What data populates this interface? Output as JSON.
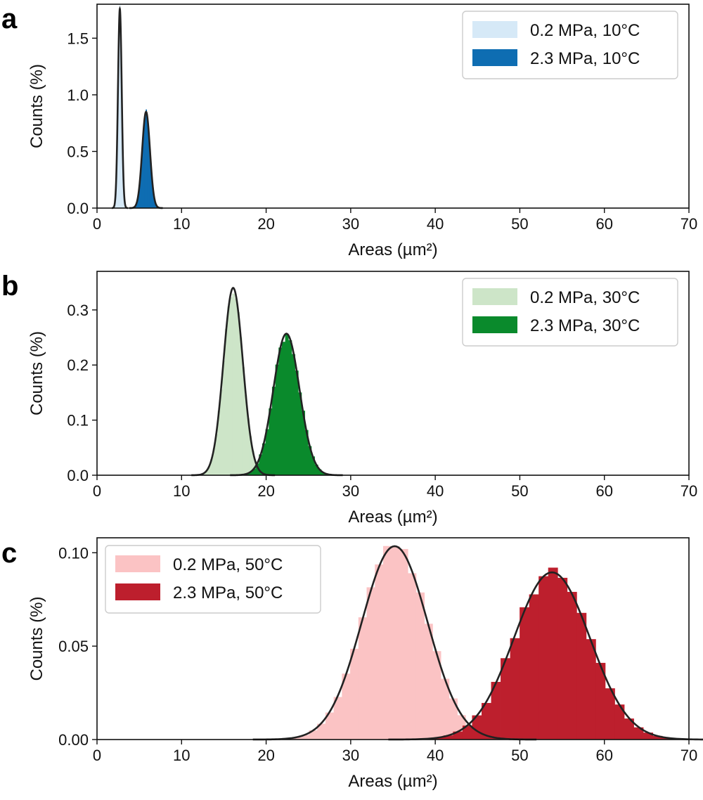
{
  "chart_data": [
    {
      "panel": "a",
      "type": "histogram",
      "xlabel": "Areas (µm²)",
      "ylabel": "Counts (%)",
      "xlim": [
        0,
        70
      ],
      "ylim": [
        0,
        1.8
      ],
      "xticks": [
        "0",
        "10",
        "20",
        "30",
        "40",
        "50",
        "60",
        "70"
      ],
      "yticks": [
        {
          "v": 0.0,
          "label": "0.0"
        },
        {
          "v": 0.5,
          "label": "0.5"
        },
        {
          "v": 1.0,
          "label": "1.0"
        },
        {
          "v": 1.5,
          "label": "1.5"
        }
      ],
      "legend_position": "top-right",
      "series": [
        {
          "name": "0.2 MPa, 10°C",
          "color": "#d6e9f7",
          "mean": 2.7,
          "sd": 0.22,
          "peak": 1.76
        },
        {
          "name": "2.3 MPa, 10°C",
          "color": "#0e6db2",
          "mean": 5.8,
          "sd": 0.46,
          "peak": 0.85
        }
      ]
    },
    {
      "panel": "b",
      "type": "histogram",
      "xlabel": "Areas (µm²)",
      "ylabel": "Counts (%)",
      "xlim": [
        0,
        70
      ],
      "ylim": [
        0,
        0.37
      ],
      "xticks": [
        "0",
        "10",
        "20",
        "30",
        "40",
        "50",
        "60",
        "70"
      ],
      "yticks": [
        {
          "v": 0.0,
          "label": "0.0"
        },
        {
          "v": 0.1,
          "label": "0.1"
        },
        {
          "v": 0.2,
          "label": "0.2"
        },
        {
          "v": 0.3,
          "label": "0.3"
        }
      ],
      "legend_position": "top-right",
      "series": [
        {
          "name": "0.2 MPa, 30°C",
          "color": "#cde5c8",
          "mean": 16.1,
          "sd": 1.15,
          "peak": 0.34
        },
        {
          "name": "2.3 MPa, 30°C",
          "color": "#0a8a2c",
          "mean": 22.4,
          "sd": 1.55,
          "peak": 0.257
        }
      ]
    },
    {
      "panel": "c",
      "type": "histogram",
      "xlabel": "Areas (µm²)",
      "ylabel": "Counts (%)",
      "xlim": [
        0,
        70
      ],
      "ylim": [
        0,
        0.108
      ],
      "xticks": [
        "0",
        "10",
        "20",
        "30",
        "40",
        "50",
        "60",
        "70"
      ],
      "yticks": [
        {
          "v": 0.0,
          "label": "0.00"
        },
        {
          "v": 0.05,
          "label": "0.05"
        },
        {
          "v": 0.1,
          "label": "0.10"
        }
      ],
      "legend_position": "top-left",
      "series": [
        {
          "name": "0.2 MPa, 50°C",
          "color": "#fbc3c4",
          "mean": 35.2,
          "sd": 3.9,
          "peak": 0.1035
        },
        {
          "name": "2.3 MPa, 50°C",
          "color": "#bd1f2d",
          "mean": 53.8,
          "sd": 4.5,
          "peak": 0.0895
        }
      ]
    }
  ]
}
